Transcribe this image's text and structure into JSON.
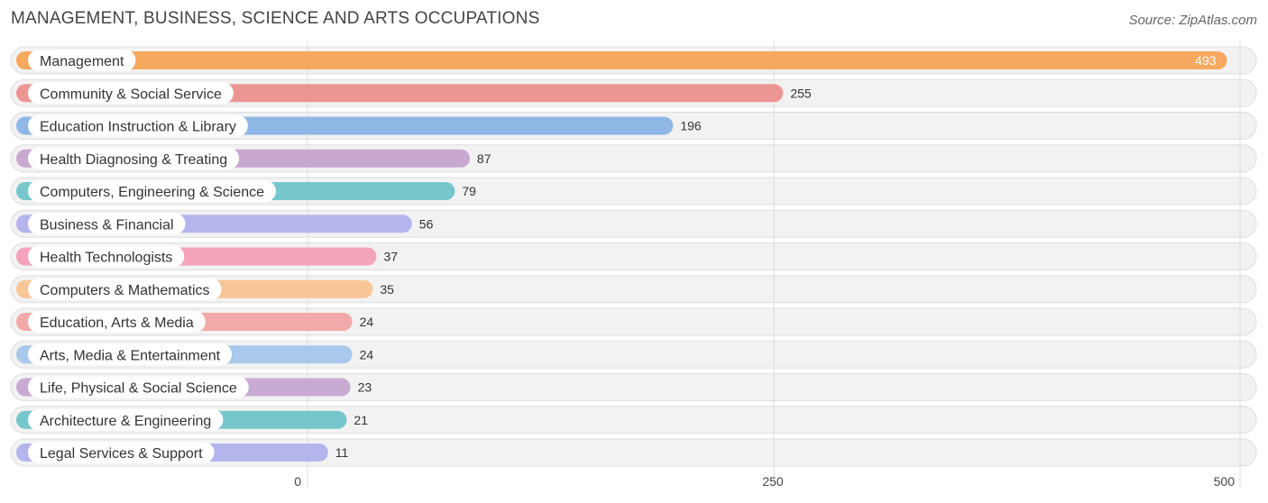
{
  "title": "MANAGEMENT, BUSINESS, SCIENCE AND ARTS OCCUPATIONS",
  "source": "Source: ZipAtlas.com",
  "chart_data": {
    "type": "bar",
    "orientation": "horizontal",
    "categories": [
      "Management",
      "Community & Social Service",
      "Education Instruction & Library",
      "Health Diagnosing & Treating",
      "Computers, Engineering & Science",
      "Business & Financial",
      "Health Technologists",
      "Computers & Mathematics",
      "Education, Arts & Media",
      "Arts, Media & Entertainment",
      "Life, Physical & Social Science",
      "Architecture & Engineering",
      "Legal Services & Support"
    ],
    "values": [
      493,
      255,
      196,
      87,
      79,
      56,
      37,
      35,
      24,
      24,
      23,
      21,
      11
    ],
    "colors": [
      "#f5a85e",
      "#ec9694",
      "#8fb7e6",
      "#c9a8d0",
      "#76c7cc",
      "#b3b5ec",
      "#f5a3bb",
      "#f8c597",
      "#f2aaa8",
      "#a8c8ec",
      "#c8aad2",
      "#76c7cc",
      "#b3b5ec"
    ],
    "xlim": [
      0,
      500
    ],
    "xticks": [
      0,
      250,
      500
    ],
    "grid": true
  }
}
